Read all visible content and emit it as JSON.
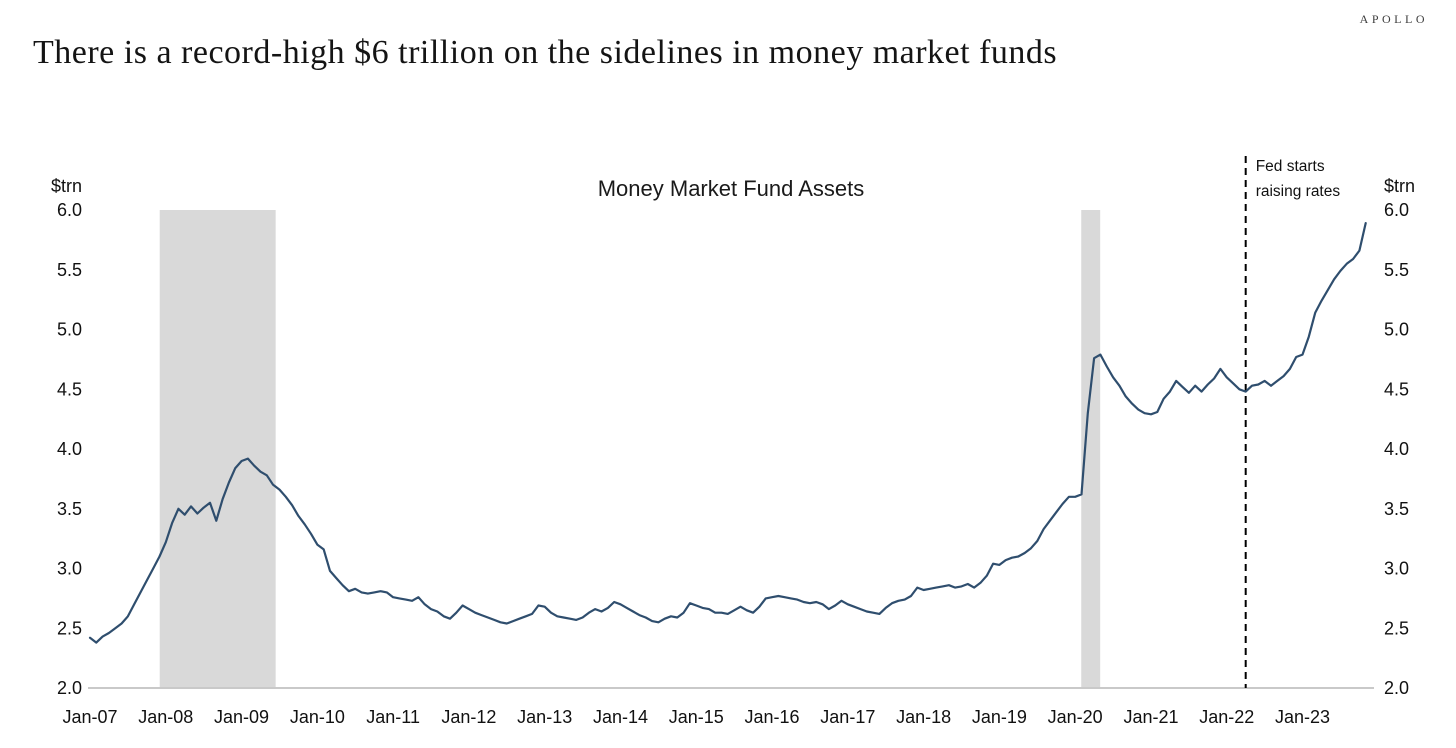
{
  "header": {
    "brand": "APOLLO",
    "title": "There is a record-high $6 trillion on the sidelines in money market funds"
  },
  "chart_data": {
    "type": "line",
    "title": "Money Market Fund Assets",
    "unit_label": "$trn",
    "ylim": [
      2.0,
      6.0
    ],
    "ytick_labels": [
      "2.0",
      "2.5",
      "3.0",
      "3.5",
      "4.0",
      "4.5",
      "5.0",
      "5.5",
      "6.0"
    ],
    "xtick_labels": [
      "Jan-07",
      "Jan-08",
      "Jan-09",
      "Jan-10",
      "Jan-11",
      "Jan-12",
      "Jan-13",
      "Jan-14",
      "Jan-15",
      "Jan-16",
      "Jan-17",
      "Jan-18",
      "Jan-19",
      "Jan-20",
      "Jan-21",
      "Jan-22",
      "Jan-23"
    ],
    "x_range": [
      2007.0,
      2023.9167
    ],
    "grid": false,
    "legend": "none",
    "line_color": "#2f4e6e",
    "recession_band_color": "#d9d9d9",
    "recession_bands": [
      {
        "from": 2007.92,
        "to": 2009.45
      },
      {
        "from": 2020.08,
        "to": 2020.33
      }
    ],
    "annotation": {
      "x": 2022.25,
      "text_lines": [
        "Fed starts",
        "raising rates"
      ]
    },
    "series": [
      {
        "name": "Money Market Fund Assets ($trn)",
        "x_start": 2007.0,
        "x_step": 0.0833333,
        "values": [
          2.42,
          2.38,
          2.43,
          2.46,
          2.5,
          2.54,
          2.6,
          2.7,
          2.8,
          2.9,
          3.0,
          3.1,
          3.22,
          3.38,
          3.5,
          3.45,
          3.52,
          3.46,
          3.51,
          3.55,
          3.4,
          3.58,
          3.72,
          3.84,
          3.9,
          3.92,
          3.86,
          3.81,
          3.78,
          3.7,
          3.66,
          3.6,
          3.53,
          3.44,
          3.37,
          3.29,
          3.2,
          3.16,
          2.98,
          2.92,
          2.86,
          2.81,
          2.83,
          2.8,
          2.79,
          2.8,
          2.81,
          2.8,
          2.76,
          2.75,
          2.74,
          2.73,
          2.76,
          2.7,
          2.66,
          2.64,
          2.6,
          2.58,
          2.63,
          2.69,
          2.66,
          2.63,
          2.61,
          2.59,
          2.57,
          2.55,
          2.54,
          2.56,
          2.58,
          2.6,
          2.62,
          2.69,
          2.68,
          2.63,
          2.6,
          2.59,
          2.58,
          2.57,
          2.59,
          2.63,
          2.66,
          2.64,
          2.67,
          2.72,
          2.7,
          2.67,
          2.64,
          2.61,
          2.59,
          2.56,
          2.55,
          2.58,
          2.6,
          2.59,
          2.63,
          2.71,
          2.69,
          2.67,
          2.66,
          2.63,
          2.63,
          2.62,
          2.65,
          2.68,
          2.65,
          2.63,
          2.68,
          2.75,
          2.76,
          2.77,
          2.76,
          2.75,
          2.74,
          2.72,
          2.71,
          2.72,
          2.7,
          2.66,
          2.69,
          2.73,
          2.7,
          2.68,
          2.66,
          2.64,
          2.63,
          2.62,
          2.67,
          2.71,
          2.73,
          2.74,
          2.77,
          2.84,
          2.82,
          2.83,
          2.84,
          2.85,
          2.86,
          2.84,
          2.85,
          2.87,
          2.84,
          2.88,
          2.94,
          3.04,
          3.03,
          3.07,
          3.09,
          3.1,
          3.13,
          3.17,
          3.23,
          3.33,
          3.4,
          3.47,
          3.54,
          3.6,
          3.6,
          3.62,
          4.3,
          4.76,
          4.79,
          4.69,
          4.6,
          4.53,
          4.44,
          4.38,
          4.33,
          4.3,
          4.29,
          4.31,
          4.42,
          4.48,
          4.57,
          4.52,
          4.47,
          4.53,
          4.48,
          4.54,
          4.59,
          4.67,
          4.6,
          4.55,
          4.5,
          4.48,
          4.53,
          4.54,
          4.57,
          4.53,
          4.57,
          4.61,
          4.67,
          4.77,
          4.79,
          4.94,
          5.14,
          5.24,
          5.33,
          5.42,
          5.49,
          5.55,
          5.59,
          5.66,
          5.89
        ]
      }
    ]
  }
}
